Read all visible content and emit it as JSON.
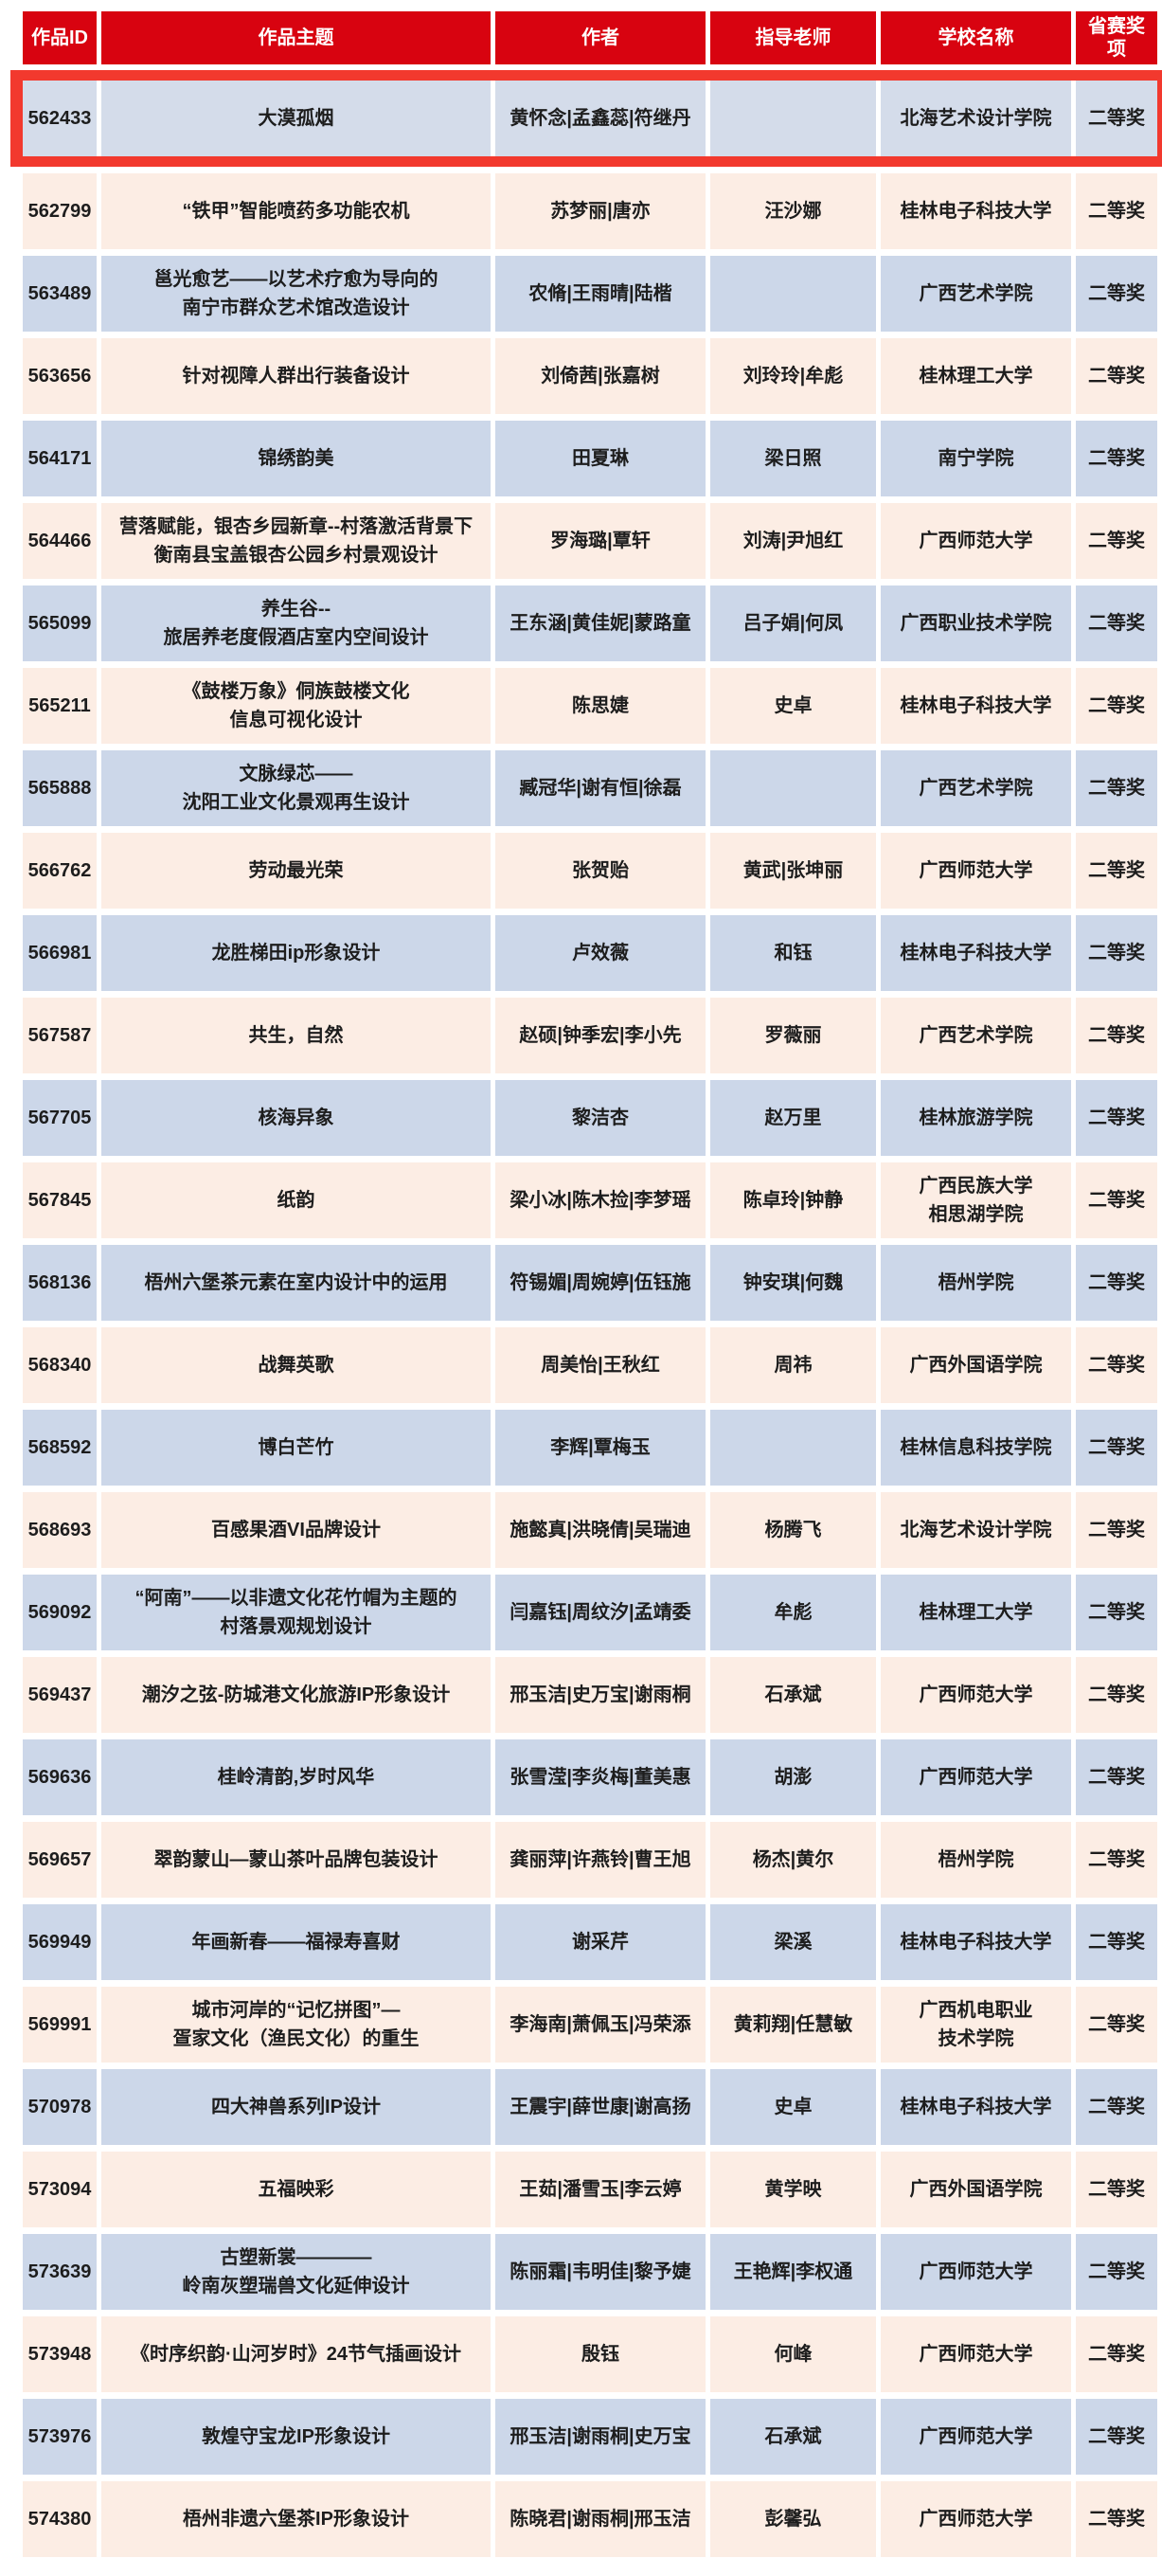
{
  "table": {
    "columns": [
      "作品ID",
      "作品主题",
      "作者",
      "指导老师",
      "学校名称",
      "省赛奖项"
    ],
    "colors": {
      "page_bg": "#ffffff",
      "header_bg": "#d80310",
      "header_text": "#ffffff",
      "highlight_band": "#f2392e",
      "highlight_row_bg": "#d4dcea",
      "blue_row_bg": "#ccd7e9",
      "peach_row_bg": "#fcede4",
      "text": "#1d1d1d"
    },
    "rows": [
      {
        "id": "562433",
        "theme": "大漠孤烟",
        "authors": "黄怀念|孟鑫蕊|符继丹",
        "advisor": "",
        "school": "北海艺术设计学院",
        "award": "二等奖",
        "bg": "blue",
        "highlighted": true
      },
      {
        "id": "562799",
        "theme": "“铁甲”智能喷药多功能农机",
        "authors": "苏梦丽|唐亦",
        "advisor": "汪沙娜",
        "school": "桂林电子科技大学",
        "award": "二等奖",
        "bg": "peach",
        "highlighted": false
      },
      {
        "id": "563489",
        "theme": "邕光愈艺——以艺术疗愈为导向的\n南宁市群众艺术馆改造设计",
        "authors": "农脩|王雨晴|陆楷",
        "advisor": "",
        "school": "广西艺术学院",
        "award": "二等奖",
        "bg": "blue",
        "highlighted": false
      },
      {
        "id": "563656",
        "theme": "针对视障人群出行装备设计",
        "authors": "刘倚茜|张嘉树",
        "advisor": "刘玲玲|牟彪",
        "school": "桂林理工大学",
        "award": "二等奖",
        "bg": "peach",
        "highlighted": false
      },
      {
        "id": "564171",
        "theme": "锦绣韵美",
        "authors": "田夏琳",
        "advisor": "梁日照",
        "school": "南宁学院",
        "award": "二等奖",
        "bg": "blue",
        "highlighted": false
      },
      {
        "id": "564466",
        "theme": "营落赋能，银杏乡园新章--村落激活背景下\n衡南县宝盖银杏公园乡村景观设计",
        "authors": "罗海璐|覃轩",
        "advisor": "刘涛|尹旭红",
        "school": "广西师范大学",
        "award": "二等奖",
        "bg": "peach",
        "highlighted": false
      },
      {
        "id": "565099",
        "theme": "养生谷--\n旅居养老度假酒店室内空间设计",
        "authors": "王东涵|黄佳妮|蒙路童",
        "advisor": "吕子娟|何凤",
        "school": "广西职业技术学院",
        "award": "二等奖",
        "bg": "blue",
        "highlighted": false
      },
      {
        "id": "565211",
        "theme": "《鼓楼万象》侗族鼓楼文化\n信息可视化设计",
        "authors": "陈思婕",
        "advisor": "史卓",
        "school": "桂林电子科技大学",
        "award": "二等奖",
        "bg": "peach",
        "highlighted": false
      },
      {
        "id": "565888",
        "theme": "文脉绿芯——\n沈阳工业文化景观再生设计",
        "authors": "臧冠华|谢有恒|徐磊",
        "advisor": "",
        "school": "广西艺术学院",
        "award": "二等奖",
        "bg": "blue",
        "highlighted": false
      },
      {
        "id": "566762",
        "theme": "劳动最光荣",
        "authors": "张贺贻",
        "advisor": "黄武|张坤丽",
        "school": "广西师范大学",
        "award": "二等奖",
        "bg": "peach",
        "highlighted": false
      },
      {
        "id": "566981",
        "theme": "龙胜梯田ip形象设计",
        "authors": "卢效薇",
        "advisor": "和钰",
        "school": "桂林电子科技大学",
        "award": "二等奖",
        "bg": "blue",
        "highlighted": false
      },
      {
        "id": "567587",
        "theme": "共生，自然",
        "authors": "赵硕|钟季宏|李小先",
        "advisor": "罗薇丽",
        "school": "广西艺术学院",
        "award": "二等奖",
        "bg": "peach",
        "highlighted": false
      },
      {
        "id": "567705",
        "theme": "核海异象",
        "authors": "黎洁杏",
        "advisor": "赵万里",
        "school": "桂林旅游学院",
        "award": "二等奖",
        "bg": "blue",
        "highlighted": false
      },
      {
        "id": "567845",
        "theme": "纸韵",
        "authors": "梁小冰|陈木捡|李梦瑶",
        "advisor": "陈卓玲|钟静",
        "school": "广西民族大学\n相思湖学院",
        "award": "二等奖",
        "bg": "peach",
        "highlighted": false
      },
      {
        "id": "568136",
        "theme": "梧州六堡茶元素在室内设计中的运用",
        "authors": "符锡媚|周婉婷|伍钰施",
        "advisor": "钟安琪|何魏",
        "school": "梧州学院",
        "award": "二等奖",
        "bg": "blue",
        "highlighted": false
      },
      {
        "id": "568340",
        "theme": "战舞英歌",
        "authors": "周美怡|王秋红",
        "advisor": "周祎",
        "school": "广西外国语学院",
        "award": "二等奖",
        "bg": "peach",
        "highlighted": false
      },
      {
        "id": "568592",
        "theme": "博白芒竹",
        "authors": "李辉|覃梅玉",
        "advisor": "",
        "school": "桂林信息科技学院",
        "award": "二等奖",
        "bg": "blue",
        "highlighted": false
      },
      {
        "id": "568693",
        "theme": "百感果酒VI品牌设计",
        "authors": "施懿真|洪晓倩|吴瑞迪",
        "advisor": "杨腾飞",
        "school": "北海艺术设计学院",
        "award": "二等奖",
        "bg": "peach",
        "highlighted": false
      },
      {
        "id": "569092",
        "theme": "“阿南”——以非遗文化花竹帽为主题的\n村落景观规划设计",
        "authors": "闫嘉钰|周纹汐|孟靖委",
        "advisor": "牟彪",
        "school": "桂林理工大学",
        "award": "二等奖",
        "bg": "blue",
        "highlighted": false
      },
      {
        "id": "569437",
        "theme": "潮汐之弦-防城港文化旅游IP形象设计",
        "authors": "邢玉洁|史万宝|谢雨桐",
        "advisor": "石承斌",
        "school": "广西师范大学",
        "award": "二等奖",
        "bg": "peach",
        "highlighted": false
      },
      {
        "id": "569636",
        "theme": "桂岭清韵,岁时风华",
        "authors": "张雪滢|李炎梅|董美惠",
        "advisor": "胡澎",
        "school": "广西师范大学",
        "award": "二等奖",
        "bg": "blue",
        "highlighted": false
      },
      {
        "id": "569657",
        "theme": "翠韵蒙山—蒙山茶叶品牌包装设计",
        "authors": "龚丽萍|许燕铃|曹王旭",
        "advisor": "杨杰|黄尔",
        "school": "梧州学院",
        "award": "二等奖",
        "bg": "peach",
        "highlighted": false
      },
      {
        "id": "569949",
        "theme": "年画新春——福禄寿喜财",
        "authors": "谢采芹",
        "advisor": "梁溪",
        "school": "桂林电子科技大学",
        "award": "二等奖",
        "bg": "blue",
        "highlighted": false
      },
      {
        "id": "569991",
        "theme": "城市河岸的“记忆拼图”—\n疍家文化（渔民文化）的重生",
        "authors": "李海南|萧佩玉|冯荣添",
        "advisor": "黄莉翔|任慧敏",
        "school": "广西机电职业\n技术学院",
        "award": "二等奖",
        "bg": "peach",
        "highlighted": false
      },
      {
        "id": "570978",
        "theme": "四大神兽系列IP设计",
        "authors": "王震宇|薛世康|谢高扬",
        "advisor": "史卓",
        "school": "桂林电子科技大学",
        "award": "二等奖",
        "bg": "blue",
        "highlighted": false
      },
      {
        "id": "573094",
        "theme": "五福映彩",
        "authors": "王茹|潘雪玉|李云婷",
        "advisor": "黄学映",
        "school": "广西外国语学院",
        "award": "二等奖",
        "bg": "peach",
        "highlighted": false
      },
      {
        "id": "573639",
        "theme": "古塑新裳————\n岭南灰塑瑞兽文化延伸设计",
        "authors": "陈丽霜|韦明佳|黎予婕",
        "advisor": "王艳辉|李权通",
        "school": "广西师范大学",
        "award": "二等奖",
        "bg": "blue",
        "highlighted": false
      },
      {
        "id": "573948",
        "theme": "《时序织韵·山河岁时》24节气插画设计",
        "authors": "殷钰",
        "advisor": "何峰",
        "school": "广西师范大学",
        "award": "二等奖",
        "bg": "peach",
        "highlighted": false
      },
      {
        "id": "573976",
        "theme": "敦煌守宝龙IP形象设计",
        "authors": "邢玉洁|谢雨桐|史万宝",
        "advisor": "石承斌",
        "school": "广西师范大学",
        "award": "二等奖",
        "bg": "blue",
        "highlighted": false
      },
      {
        "id": "574380",
        "theme": "梧州非遗六堡茶IP形象设计",
        "authors": "陈晓君|谢雨桐|邢玉洁",
        "advisor": "彭馨弘",
        "school": "广西师范大学",
        "award": "二等奖",
        "bg": "peach",
        "highlighted": false
      }
    ]
  }
}
